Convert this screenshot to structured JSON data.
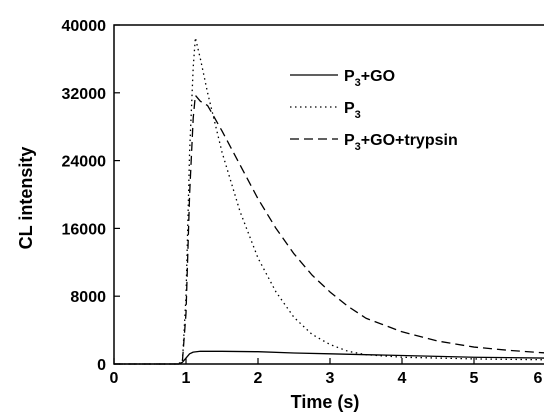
{
  "chart_data": {
    "type": "line",
    "title": "",
    "xlabel": "Time (s)",
    "ylabel": "CL intensity",
    "xlim": [
      0,
      6
    ],
    "ylim": [
      0,
      40000
    ],
    "x_ticks": [
      0,
      1,
      2,
      3,
      4,
      5,
      6
    ],
    "y_ticks": [
      0,
      8000,
      16000,
      24000,
      32000,
      40000
    ],
    "grid": false,
    "legend_position": "top-right",
    "series": [
      {
        "name_parts": [
          "P",
          "3",
          "+GO"
        ],
        "style": "solid",
        "color": "#000000",
        "points": [
          [
            0,
            0
          ],
          [
            0.85,
            0
          ],
          [
            0.9,
            0
          ],
          [
            0.95,
            200
          ],
          [
            1.0,
            700
          ],
          [
            1.05,
            1200
          ],
          [
            1.1,
            1400
          ],
          [
            1.2,
            1500
          ],
          [
            1.5,
            1500
          ],
          [
            2.0,
            1450
          ],
          [
            2.5,
            1300
          ],
          [
            3.0,
            1200
          ],
          [
            3.5,
            1100
          ],
          [
            4.0,
            1000
          ],
          [
            4.5,
            900
          ],
          [
            5.0,
            800
          ],
          [
            5.5,
            750
          ],
          [
            6.0,
            700
          ]
        ]
      },
      {
        "name_parts": [
          "P",
          "3",
          ""
        ],
        "style": "dotted",
        "color": "#000000",
        "points": [
          [
            0,
            0
          ],
          [
            0.85,
            0
          ],
          [
            0.95,
            200
          ],
          [
            1.0,
            8000
          ],
          [
            1.05,
            25000
          ],
          [
            1.1,
            35000
          ],
          [
            1.13,
            38500
          ],
          [
            1.2,
            36000
          ],
          [
            1.3,
            32000
          ],
          [
            1.5,
            25000
          ],
          [
            1.75,
            18000
          ],
          [
            2.0,
            12500
          ],
          [
            2.25,
            8500
          ],
          [
            2.5,
            5500
          ],
          [
            2.75,
            3500
          ],
          [
            3.0,
            2300
          ],
          [
            3.25,
            1500
          ],
          [
            3.5,
            1100
          ],
          [
            4.0,
            800
          ],
          [
            4.5,
            700
          ],
          [
            5.0,
            600
          ],
          [
            5.5,
            550
          ],
          [
            6.0,
            500
          ]
        ]
      },
      {
        "name_parts": [
          "P",
          "3",
          "+GO+trypsin"
        ],
        "style": "dashed",
        "color": "#000000",
        "points": [
          [
            0,
            0
          ],
          [
            0.9,
            0
          ],
          [
            0.95,
            300
          ],
          [
            1.0,
            6000
          ],
          [
            1.05,
            20000
          ],
          [
            1.1,
            29000
          ],
          [
            1.13,
            31700
          ],
          [
            1.2,
            31000
          ],
          [
            1.3,
            30500
          ],
          [
            1.5,
            27500
          ],
          [
            1.75,
            23500
          ],
          [
            2.0,
            19500
          ],
          [
            2.25,
            16000
          ],
          [
            2.5,
            13000
          ],
          [
            2.75,
            10500
          ],
          [
            3.0,
            8500
          ],
          [
            3.25,
            6800
          ],
          [
            3.5,
            5400
          ],
          [
            4.0,
            3800
          ],
          [
            4.5,
            2700
          ],
          [
            5.0,
            2000
          ],
          [
            5.5,
            1600
          ],
          [
            6.0,
            1300
          ]
        ]
      }
    ]
  }
}
